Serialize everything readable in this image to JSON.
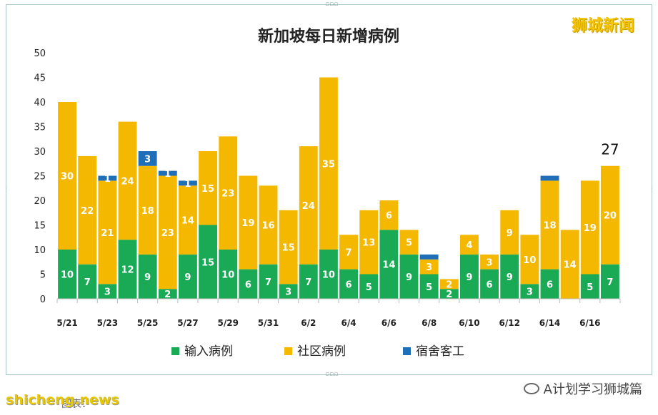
{
  "chart_data": {
    "type": "bar",
    "stacked": true,
    "title": "新加坡每日新增病例",
    "ylim": [
      0,
      50
    ],
    "yticks": [
      0,
      5,
      10,
      15,
      20,
      25,
      30,
      35,
      40,
      45,
      50
    ],
    "categories": [
      "5/21",
      "5/22",
      "5/23",
      "5/24",
      "5/25",
      "5/26",
      "5/27",
      "5/28",
      "5/29",
      "5/30",
      "5/31",
      "6/1",
      "6/2",
      "6/3",
      "6/4",
      "6/5",
      "6/6",
      "6/7",
      "6/8",
      "6/9",
      "6/10",
      "6/11",
      "6/12",
      "6/13",
      "6/14",
      "6/15",
      "6/16",
      "6/17"
    ],
    "xtick_labels": [
      "5/21",
      "",
      "5/23",
      "",
      "5/25",
      "",
      "5/27",
      "",
      "5/29",
      "",
      "5/31",
      "",
      "6/2",
      "",
      "6/4",
      "",
      "6/6",
      "",
      "6/8",
      "",
      "6/10",
      "",
      "6/12",
      "",
      "6/14",
      "",
      "6/16",
      ""
    ],
    "series": [
      {
        "name": "输入病例",
        "color": "#1aaa55",
        "values": [
          10,
          7,
          3,
          12,
          9,
          2,
          9,
          15,
          10,
          6,
          7,
          3,
          7,
          10,
          6,
          5,
          14,
          9,
          5,
          2,
          9,
          6,
          9,
          3,
          6,
          0,
          5,
          7
        ]
      },
      {
        "name": "社区病例",
        "color": "#f5b800",
        "values": [
          30,
          22,
          21,
          24,
          18,
          23,
          14,
          15,
          23,
          19,
          16,
          15,
          24,
          35,
          7,
          13,
          6,
          5,
          3,
          2,
          4,
          3,
          9,
          10,
          18,
          14,
          19,
          20
        ]
      },
      {
        "name": "宿舍客工",
        "color": "#1f6fb8",
        "values": [
          0,
          0,
          1,
          0,
          3,
          1,
          1,
          0,
          0,
          0,
          0,
          0,
          0,
          0,
          0,
          0,
          0,
          0,
          1,
          0,
          0,
          0,
          0,
          0,
          1,
          0,
          0,
          0
        ]
      }
    ],
    "data_labels": {
      "输入病例": [
        "10",
        "7",
        "3",
        "12",
        "9",
        "2",
        "9",
        "15",
        "10",
        "6",
        "7",
        "3",
        "7",
        "10",
        "6",
        "5",
        "14",
        "9",
        "5",
        "2",
        "9",
        "6",
        "9",
        "3",
        "6",
        "",
        "5",
        "7"
      ],
      "社区病例": [
        "30",
        "22",
        "21",
        "24",
        "18",
        "23",
        "14",
        "15",
        "23",
        "19",
        "16",
        "15",
        "24",
        "35",
        "7",
        "13",
        "6",
        "5",
        "3",
        "2",
        "4",
        "3",
        "9",
        "10",
        "18",
        "14",
        "19",
        "20"
      ],
      "宿舍客工": [
        "",
        "",
        "1",
        "",
        "3",
        "1",
        "1",
        "",
        "",
        "",
        "",
        "",
        "",
        "",
        "",
        "",
        "",
        "",
        "",
        "",
        "",
        "",
        "",
        "",
        "",
        "",
        "",
        ""
      ]
    },
    "annotation": {
      "category": "6/17",
      "text": "27"
    },
    "legend": {
      "placement": "bottom"
    },
    "grid": false
  },
  "watermark_top": "狮城新闻",
  "watermark_bottom": "shicheng.news",
  "source_note": "图表：",
  "brand_text": "A计划学习狮城篇"
}
